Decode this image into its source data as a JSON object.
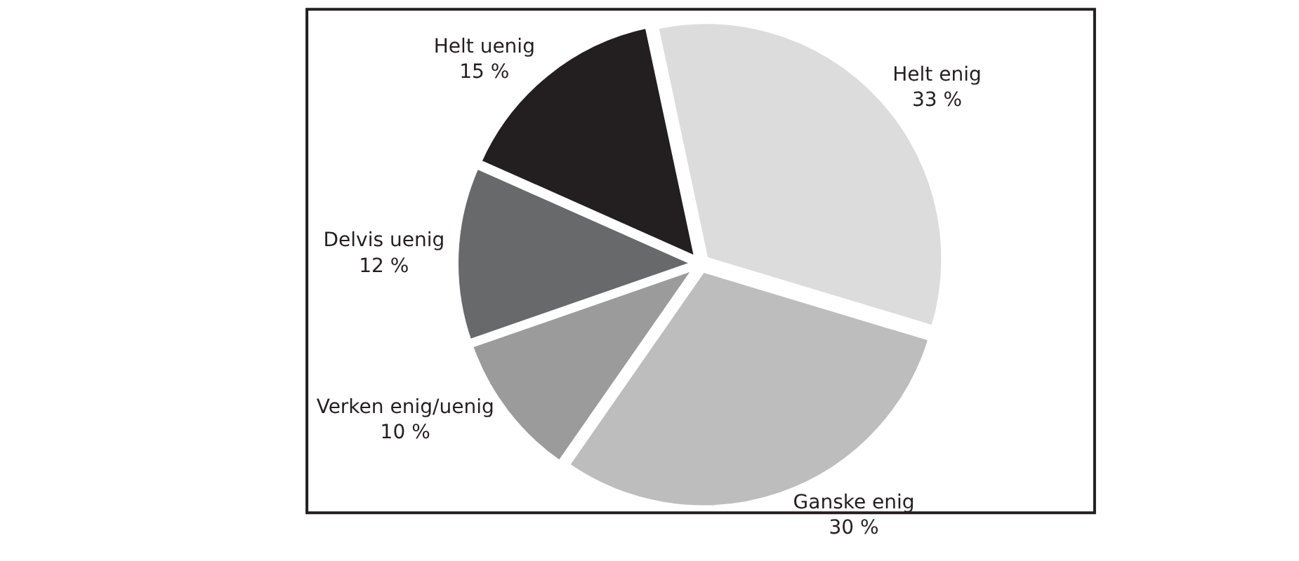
{
  "chart_data": {
    "type": "pie",
    "categories": [
      "Helt enig",
      "Ganske enig",
      "Verken enig/uenig",
      "Delvis uenig",
      "Helt uenig"
    ],
    "values": [
      33,
      30,
      10,
      12,
      15
    ],
    "value_labels": [
      "33 %",
      "30 %",
      "10 %",
      "12 %",
      "15 %"
    ],
    "colors": [
      "#dcdcdd",
      "#bdbdbe",
      "#9b9b9c",
      "#68696b",
      "#231f20"
    ],
    "legend": false
  }
}
